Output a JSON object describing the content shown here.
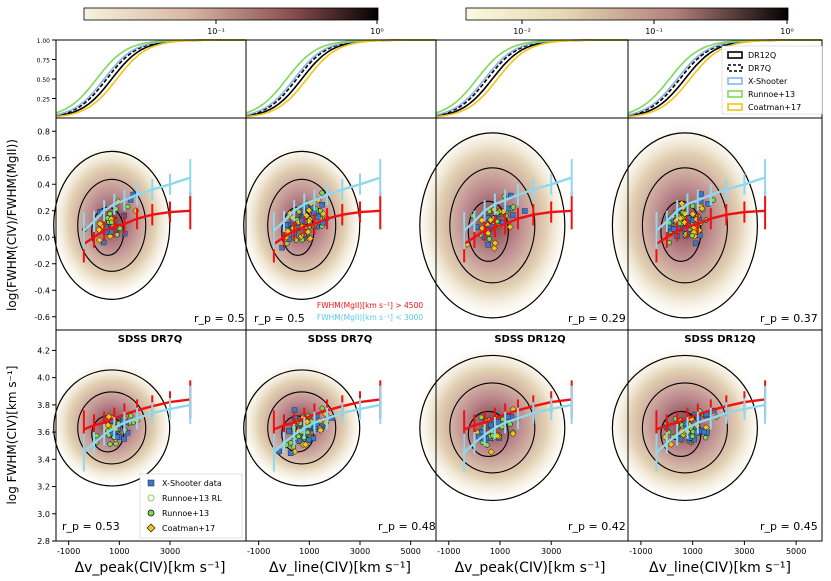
{
  "colorbars": [
    {
      "ticks": [
        "10⁻¹",
        "10⁰"
      ]
    },
    {
      "ticks": [
        "10⁻²",
        "10⁻¹",
        "10⁰"
      ]
    }
  ],
  "labels": {
    "ylabel_mid": "log(FWHM(CIV)/FWHM(MgII))",
    "ylabel_bot": "log FWHM(CIV)[km s⁻¹]",
    "xlabels": [
      "Δv_peak(CIV)[km s⁻¹]",
      "Δv_line(CIV)[km s⁻¹]",
      "Δv_peak(CIV)[km s⁻¹]",
      "Δv_line(CIV)[km s⁻¹]"
    ],
    "col_titles": [
      "SDSS DR7Q",
      "SDSS DR7Q",
      "SDSS DR12Q",
      "SDSS DR12Q"
    ],
    "annot_red": "FWHM(MgII)[km s⁻¹] > 4500",
    "annot_cyan": "FWHM(MgII)[km s⁻¹] < 3000",
    "rp_mid": [
      "r_p = 0.5",
      "r_p = 0.5",
      "r_p = 0.29",
      "r_p = 0.37"
    ],
    "rp_bot": [
      "r_p = 0.53",
      "r_p = 0.48",
      "r_p = 0.42",
      "r_p = 0.45"
    ]
  },
  "legend_top": [
    "DR12Q",
    "DR7Q",
    "X-Shooter",
    "Runnoe+13",
    "Coatman+17"
  ],
  "legend_bottom": [
    "X-Shooter data",
    "Runnoe+13 RL",
    "Runnoe+13",
    "Coatman+17"
  ],
  "colors": {
    "xshooter": "#3b76c8",
    "runnoe": "#7ed957",
    "coatman": "#f2c218",
    "red": "#ee1111",
    "cyan": "#8fd8ee",
    "contour": "#000000"
  },
  "chart_data": {
    "type": "scatter",
    "x_ticks_panels_1_3": [
      -1000,
      1000,
      3000
    ],
    "x_ticks_panels_2_4": [
      -1000,
      1000,
      3000,
      5000
    ],
    "xlim": [
      -1500,
      6000
    ],
    "top_row": {
      "ylim": [
        0,
        1.0
      ],
      "yticks": [
        0.25,
        0.5,
        0.75,
        1.0
      ],
      "type": "cumulative distribution"
    },
    "middle_row": {
      "ylim": [
        -0.7,
        0.9
      ],
      "yticks": [
        -0.6,
        -0.4,
        -0.2,
        0.0,
        0.2,
        0.4,
        0.6,
        0.8
      ]
    },
    "bottom_row": {
      "ylim": [
        2.8,
        4.35
      ],
      "yticks": [
        2.8,
        3.0,
        3.2,
        3.4,
        3.6,
        3.8,
        4.0,
        4.2
      ]
    },
    "series": [
      {
        "name": "FWHM(MgII)[km s⁻¹] > 4500",
        "x": [
          -400,
          0,
          400,
          800,
          1200,
          1700,
          2300,
          3000,
          3800
        ],
        "y_mid": [
          -0.05,
          0.0,
          0.05,
          0.08,
          0.1,
          0.14,
          0.17,
          0.19,
          0.2
        ],
        "y_bot": [
          3.62,
          3.65,
          3.67,
          3.7,
          3.73,
          3.76,
          3.79,
          3.82,
          3.84
        ]
      },
      {
        "name": "FWHM(MgII)[km s⁻¹] < 3000",
        "x": [
          -400,
          0,
          400,
          800,
          1200,
          1700,
          2300,
          3000,
          3800
        ],
        "y_mid": [
          0.05,
          0.12,
          0.2,
          0.25,
          0.28,
          0.32,
          0.36,
          0.4,
          0.45
        ],
        "y_bot": [
          3.45,
          3.52,
          3.58,
          3.63,
          3.67,
          3.7,
          3.74,
          3.77,
          3.8
        ]
      }
    ]
  }
}
